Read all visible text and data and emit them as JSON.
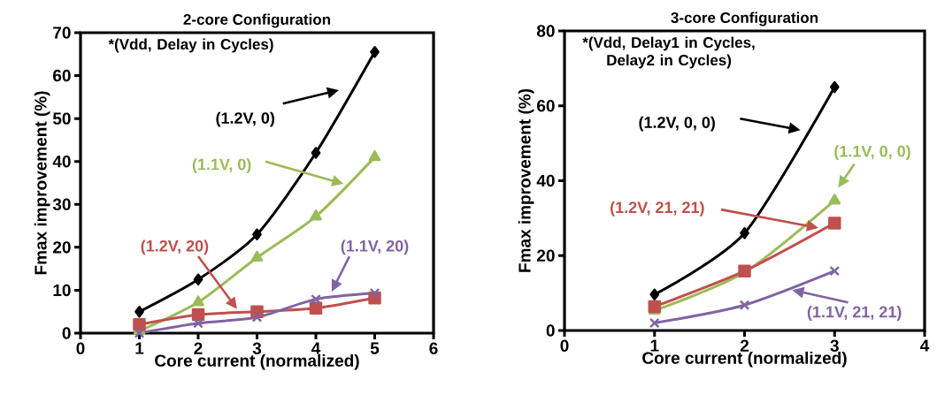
{
  "chart_data": [
    {
      "type": "line",
      "title": "2-core Configuration",
      "xlabel": "Core current (normalized)",
      "ylabel": "Fmax improvement (%)",
      "x": [
        1,
        2,
        3,
        4,
        5
      ],
      "xlim": [
        0,
        6
      ],
      "ylim": [
        0,
        70
      ],
      "xticks": [
        0,
        1,
        2,
        3,
        4,
        5,
        6
      ],
      "yticks": [
        0,
        10,
        20,
        30,
        40,
        50,
        60,
        70
      ],
      "annotations": [
        "*(Vdd, Delay in Cycles)"
      ],
      "series": [
        {
          "name": "(1.2V, 0)",
          "color": "#000000",
          "marker": "diamond",
          "values": [
            5,
            12.5,
            23,
            42,
            65.5
          ]
        },
        {
          "name": "(1.1V, 0)",
          "color": "#9bbb59",
          "marker": "triangle",
          "values": [
            0.5,
            7.2,
            17.6,
            27.2,
            41
          ]
        },
        {
          "name": "(1.2V, 20)",
          "color": "#c0504d",
          "marker": "square",
          "values": [
            2,
            4.3,
            5,
            5.8,
            8.2
          ]
        },
        {
          "name": "(1.1V, 20)",
          "color": "#8064a2",
          "marker": "cross",
          "values": [
            0,
            2.3,
            3.7,
            7.9,
            9.3
          ]
        }
      ]
    },
    {
      "type": "line",
      "title": "3-core Configuration",
      "xlabel": "Core current (normalized)",
      "ylabel": "Fmax improvement (%)",
      "x": [
        1,
        2,
        3
      ],
      "xlim": [
        0,
        4
      ],
      "ylim": [
        0,
        80
      ],
      "xticks": [
        0,
        1,
        2,
        3,
        4
      ],
      "yticks": [
        0,
        20,
        40,
        60,
        80
      ],
      "annotations": [
        "*(Vdd, Delay1 in Cycles, Delay2 in Cycles)"
      ],
      "series": [
        {
          "name": "(1.2V, 0, 0)",
          "color": "#000000",
          "marker": "diamond",
          "values": [
            9.6,
            26,
            65
          ]
        },
        {
          "name": "(1.1V, 0, 0)",
          "color": "#9bbb59",
          "marker": "triangle",
          "values": [
            5.3,
            15.5,
            34.7
          ]
        },
        {
          "name": "(1.2V, 21, 21)",
          "color": "#c0504d",
          "marker": "square",
          "values": [
            6.4,
            15.9,
            28.7
          ]
        },
        {
          "name": "(1.1V, 21, 21)",
          "color": "#8064a2",
          "marker": "cross",
          "values": [
            2,
            6.8,
            15.9
          ]
        }
      ]
    }
  ]
}
